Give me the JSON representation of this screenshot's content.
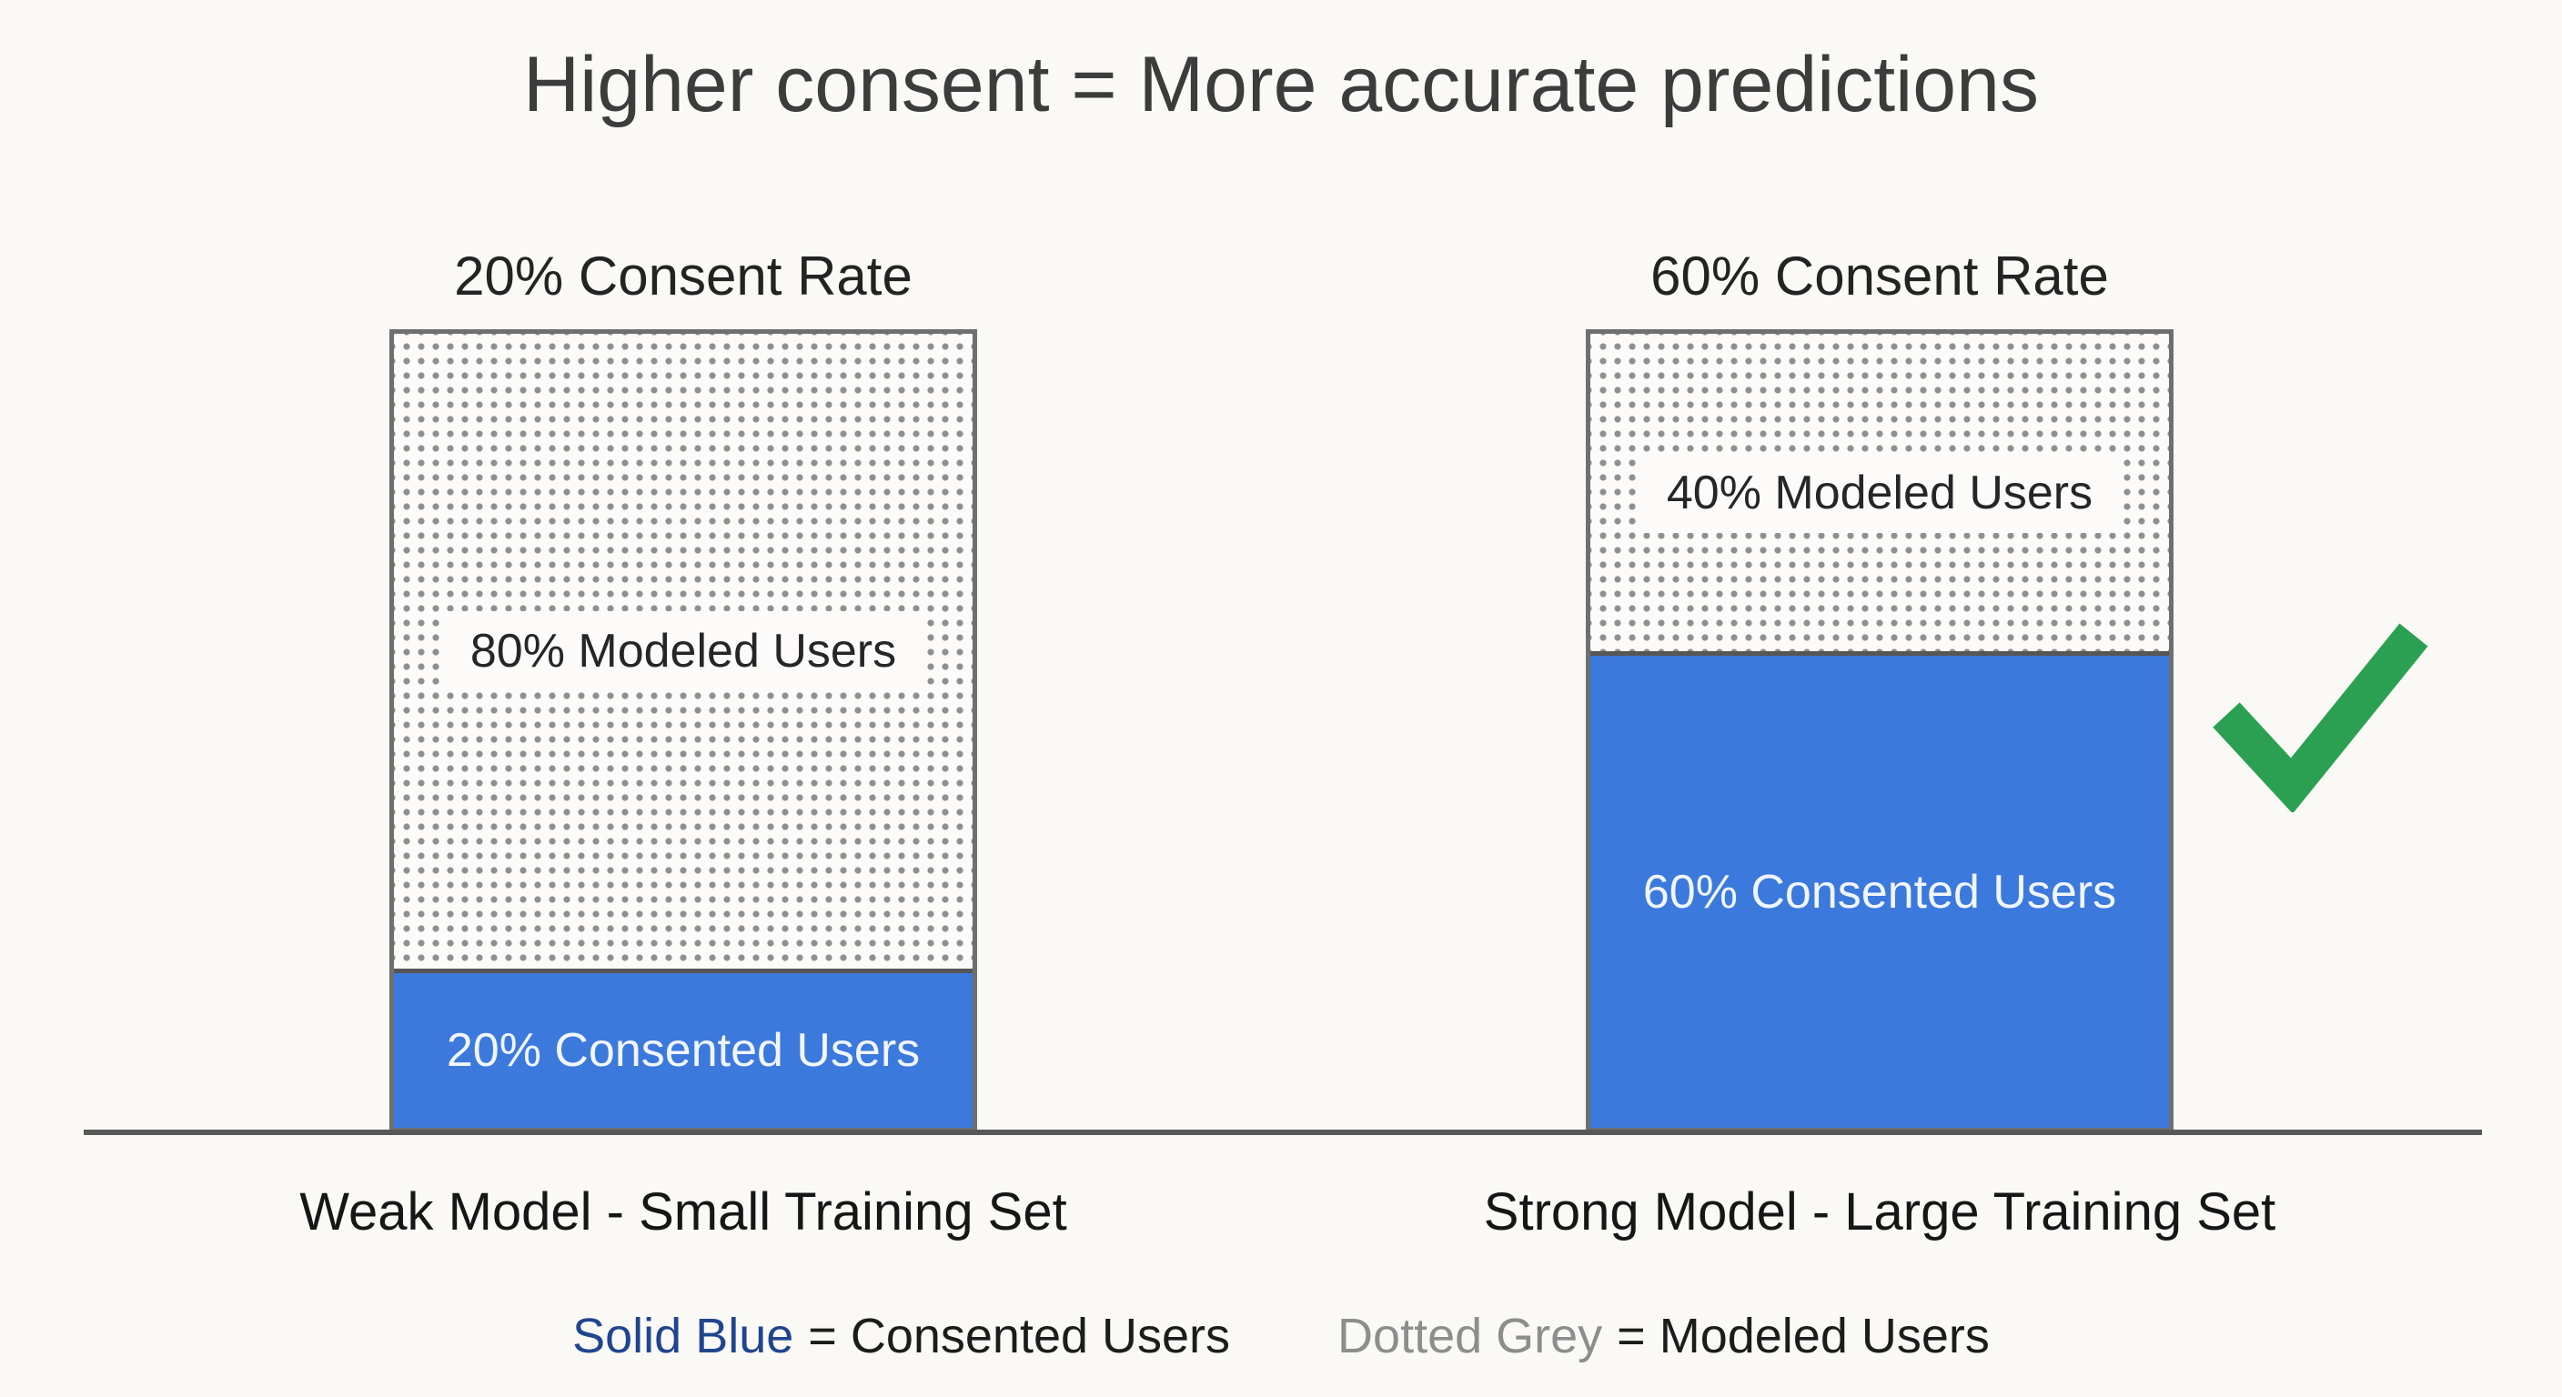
{
  "chart_data": {
    "type": "bar",
    "subtype": "stacked-percentage-comparison",
    "title": "Higher consent = More accurate predictions",
    "ylabel": "",
    "xlabel": "",
    "ylim": [
      0,
      100
    ],
    "units": "percent",
    "grid": false,
    "legend_position": "bottom",
    "categories": [
      "Weak Model - Small Training Set",
      "Strong Model - Large Training Set"
    ],
    "series": [
      {
        "name": "Consented Users",
        "style": "solid-blue",
        "values": [
          20,
          60
        ]
      },
      {
        "name": "Modeled Users",
        "style": "dotted-grey",
        "values": [
          80,
          40
        ]
      }
    ],
    "columns": [
      {
        "header": "20% Consent Rate",
        "footer": "Weak Model - Small Training Set",
        "segments": [
          {
            "name": "modeled-users",
            "label": "80% Modeled Users",
            "value": 80,
            "style": "dotted-grey"
          },
          {
            "name": "consented-users",
            "label": "20% Consented Users",
            "value": 20,
            "style": "solid-blue"
          }
        ]
      },
      {
        "header": "60% Consent Rate",
        "footer": "Strong Model - Large Training Set",
        "segments": [
          {
            "name": "modeled-users",
            "label": "40% Modeled Users",
            "value": 40,
            "style": "dotted-grey"
          },
          {
            "name": "consented-users",
            "label": "60% Consented Users",
            "value": 60,
            "style": "solid-blue"
          }
        ]
      }
    ],
    "legend": [
      {
        "term": "Solid Blue",
        "definition": "= Consented Users"
      },
      {
        "term": "Dotted Grey",
        "definition": "= Modeled Users"
      }
    ],
    "annotations": [
      {
        "type": "checkmark",
        "target": "Strong Model - Large Training Set",
        "color": "#2ba052"
      }
    ]
  },
  "colors": {
    "background": "#faf9f6",
    "bar_blue": "#3b79dd",
    "dot_grey": "#8f8f8f",
    "bar_border_grey": "#6f6f6f",
    "axis_grey": "#585858",
    "check_green": "#2ba052",
    "legend_blue_text": "#20458f",
    "legend_grey_text": "#8d8d8d",
    "title_text": "#3c3c3c",
    "body_text": "#1c1c1c"
  }
}
